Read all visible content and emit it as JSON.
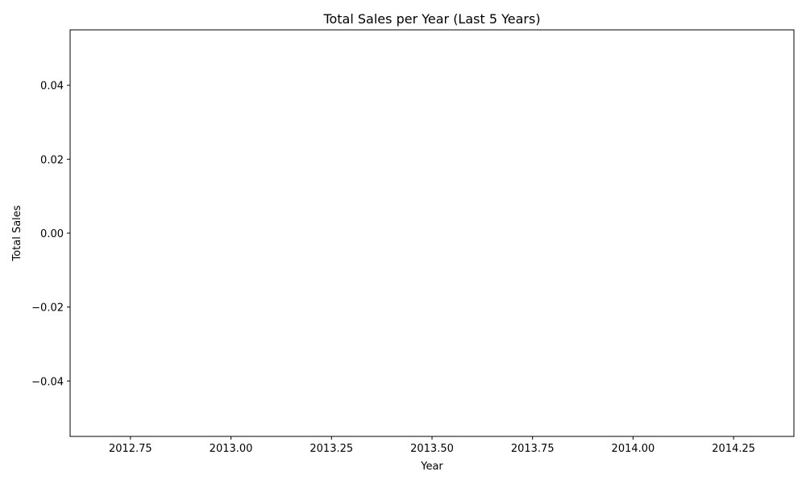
{
  "chart_data": {
    "type": "bar",
    "title": "Total Sales per Year (Last 5 Years)",
    "xlabel": "Year",
    "ylabel": "Total Sales",
    "xlim": [
      2012.6,
      2014.4
    ],
    "ylim": [
      -0.055,
      0.055
    ],
    "x_ticks": [
      {
        "value": 2012.75,
        "label": "2012.75"
      },
      {
        "value": 2013.0,
        "label": "2013.00"
      },
      {
        "value": 2013.25,
        "label": "2013.25"
      },
      {
        "value": 2013.5,
        "label": "2013.50"
      },
      {
        "value": 2013.75,
        "label": "2013.75"
      },
      {
        "value": 2014.0,
        "label": "2014.00"
      },
      {
        "value": 2014.25,
        "label": "2014.25"
      }
    ],
    "y_ticks": [
      {
        "value": -0.04,
        "label": "−0.04"
      },
      {
        "value": -0.02,
        "label": "−0.02"
      },
      {
        "value": 0.0,
        "label": "0.00"
      },
      {
        "value": 0.02,
        "label": "0.02"
      },
      {
        "value": 0.04,
        "label": "0.04"
      }
    ],
    "series": [],
    "grid": false,
    "legend": "none"
  }
}
